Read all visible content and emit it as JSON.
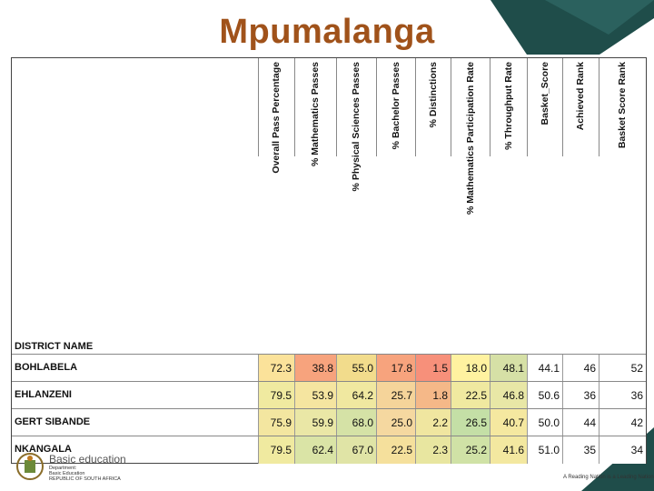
{
  "title": "Mpumalanga",
  "columns": [
    "Overall  Pass Percentage",
    "% Mathematics Passes",
    "% Physical Sciences Passes",
    "% Bachelor Passes",
    "% Distinctions",
    "% Mathematics Participation Rate",
    "% Throughput  Rate",
    "Basket_Score",
    "Achieved Rank",
    "Basket Score Rank"
  ],
  "district_header": "DISTRICT NAME",
  "rows": [
    {
      "name": "BOHLABELA",
      "values": [
        "72.3",
        "38.8",
        "55.0",
        "17.8",
        "1.5",
        "18.0",
        "48.1",
        "44.1",
        "46",
        "52"
      ]
    },
    {
      "name": "EHLANZENI",
      "values": [
        "79.5",
        "53.9",
        "64.2",
        "25.7",
        "1.8",
        "22.5",
        "46.8",
        "50.6",
        "36",
        "36"
      ]
    },
    {
      "name": "GERT SIBANDE",
      "values": [
        "75.9",
        "59.9",
        "68.0",
        "25.0",
        "2.2",
        "26.5",
        "40.7",
        "50.0",
        "44",
        "42"
      ]
    },
    {
      "name": "NKANGALA",
      "values": [
        "79.5",
        "62.4",
        "67.0",
        "22.5",
        "2.3",
        "25.2",
        "41.6",
        "51.0",
        "35",
        "34"
      ]
    }
  ],
  "cell_colors": [
    [
      "#fbe29a",
      "#f7a37d",
      "#f2dc8c",
      "#f7a37d",
      "#f7907a",
      "#fff2a0",
      "#d6e0a6",
      "#ffffff",
      "#ffffff",
      "#ffffff"
    ],
    [
      "#f0eaa0",
      "#f5e5a0",
      "#f0e8a0",
      "#f5d49a",
      "#f5b888",
      "#f0e9a0",
      "#e8e7a6",
      "#ffffff",
      "#ffffff",
      "#ffffff"
    ],
    [
      "#f3e6a0",
      "#eae7a6",
      "#d5e2a6",
      "#f5d8a0",
      "#f0e6a0",
      "#c4dfa6",
      "#f5e8a0",
      "#ffffff",
      "#ffffff",
      "#ffffff"
    ],
    [
      "#f0eaa0",
      "#dae4a6",
      "#e0e4a6",
      "#f5e09c",
      "#e8e6a0",
      "#d0e2a6",
      "#f3e8a0",
      "#ffffff",
      "#ffffff",
      "#ffffff"
    ]
  ],
  "footer": {
    "left_text": "Basic education",
    "dept_lines": [
      "Department:",
      "Basic Education",
      "REPUBLIC OF SOUTH AFRICA"
    ],
    "right_text": "A Reading Nation is a Leading Nation"
  }
}
